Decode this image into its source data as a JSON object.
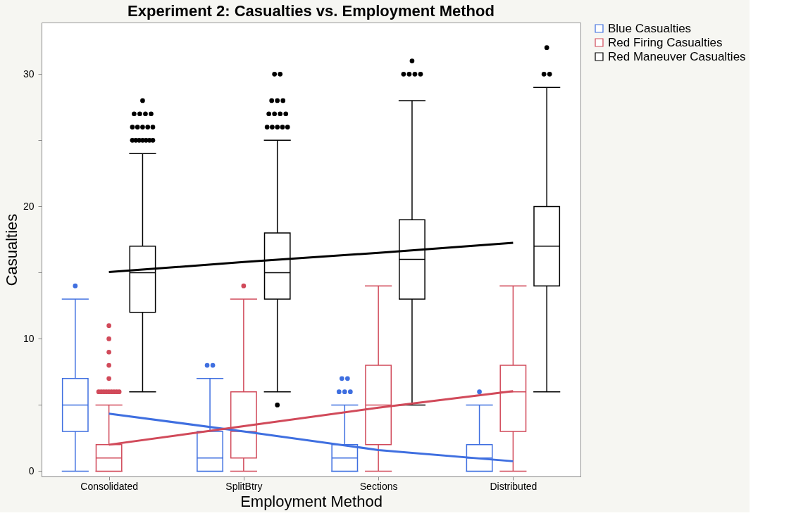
{
  "chart_data": {
    "type": "box",
    "title": "Experiment 2: Casualties vs. Employment Method",
    "xlabel": "Employment Method",
    "ylabel": "Casualties",
    "categories": [
      "Consolidated",
      "SplitBtry",
      "Sections",
      "Distributed"
    ],
    "ylim": [
      -0.4,
      33.9
    ],
    "yticks": [
      0,
      {
        "value": 5,
        "label": null
      },
      10,
      {
        "value": 15,
        "label": null
      },
      20,
      {
        "value": 25,
        "label": null
      },
      30
    ],
    "grid": false,
    "legend": "top right",
    "series": [
      {
        "name": "Blue Casualties",
        "color": "#3f6fe0",
        "boxes": [
          {
            "low": 0,
            "q1": 3,
            "median": 5,
            "q3": 7,
            "high": 13,
            "outliers": [
              14
            ]
          },
          {
            "low": 0,
            "q1": 0,
            "median": 1,
            "q3": 3,
            "high": 7,
            "outliers": [
              8,
              8
            ]
          },
          {
            "low": 0,
            "q1": 0,
            "median": 1,
            "q3": 2,
            "high": 5,
            "outliers": [
              6,
              6,
              6,
              7,
              7
            ]
          },
          {
            "low": 0,
            "q1": 0,
            "median": 1,
            "q3": 2,
            "high": 5,
            "outliers": [
              6
            ]
          }
        ]
      },
      {
        "name": "Red Firing Casualties",
        "color": "#d14a5a",
        "boxes": [
          {
            "low": 0,
            "q1": 0,
            "median": 1,
            "q3": 2,
            "high": 5,
            "outliers": [
              6,
              6,
              6,
              6,
              6,
              6,
              6,
              6,
              6,
              7,
              8,
              9,
              10,
              11
            ]
          },
          {
            "low": 0,
            "q1": 1,
            "median": 3,
            "q3": 6,
            "high": 13,
            "outliers": [
              14
            ]
          },
          {
            "low": 0,
            "q1": 2,
            "median": 5,
            "q3": 8,
            "high": 14
          },
          {
            "low": 0,
            "q1": 3,
            "median": 6,
            "q3": 8,
            "high": 14
          }
        ]
      },
      {
        "name": "Red Maneuver Casualties",
        "color": "#000000",
        "boxes": [
          {
            "low": 6,
            "q1": 12,
            "median": 15,
            "q3": 17,
            "high": 24,
            "outliers": [
              25,
              25,
              25,
              25,
              25,
              25,
              25,
              26,
              26,
              26,
              26,
              26,
              27,
              27,
              27,
              27,
              28
            ]
          },
          {
            "low": 6,
            "q1": 13,
            "median": 15,
            "q3": 18,
            "high": 25,
            "outliers": [
              5,
              26,
              26,
              26,
              26,
              26,
              27,
              27,
              27,
              27,
              28,
              28,
              28,
              30,
              30
            ]
          },
          {
            "low": 5,
            "q1": 13,
            "median": 16,
            "q3": 19,
            "high": 28,
            "outliers": [
              30,
              30,
              30,
              30,
              31
            ]
          },
          {
            "low": 6,
            "q1": 14,
            "median": 17,
            "q3": 20,
            "high": 29,
            "outliers": [
              30,
              30,
              32
            ]
          }
        ]
      },
      {
        "type": "line",
        "color": "#3f6fe0",
        "values": [
          4.35,
          3.0,
          1.6,
          0.75
        ]
      },
      {
        "type": "line",
        "color": "#d14a5a",
        "values": [
          2.0,
          3.4,
          4.8,
          6.05
        ]
      },
      {
        "type": "line",
        "color": "#000000",
        "values": [
          15.05,
          15.8,
          16.5,
          17.25
        ]
      }
    ]
  }
}
